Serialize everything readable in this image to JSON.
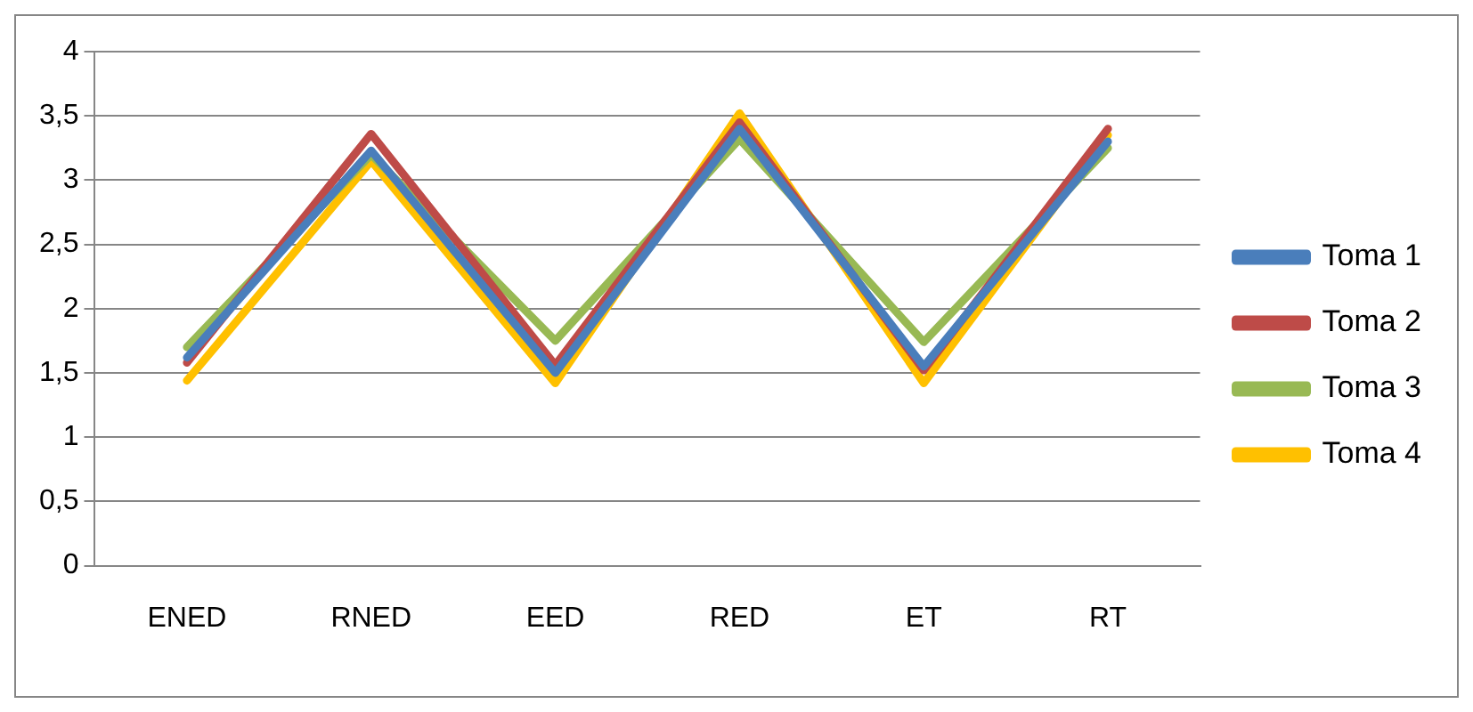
{
  "chart_data": {
    "type": "line",
    "categories": [
      "ENED",
      "RNED",
      "EED",
      "RED",
      "ET",
      "RT"
    ],
    "series": [
      {
        "name": "Toma 1",
        "color": "#4a7ebb",
        "values": [
          1.62,
          3.23,
          1.5,
          3.4,
          1.55,
          3.3
        ]
      },
      {
        "name": "Toma 2",
        "color": "#be4b48",
        "values": [
          1.58,
          3.36,
          1.56,
          3.45,
          1.52,
          3.4
        ]
      },
      {
        "name": "Toma 3",
        "color": "#98b954",
        "values": [
          1.7,
          3.2,
          1.75,
          3.32,
          1.74,
          3.25
        ]
      },
      {
        "name": "Toma 4",
        "color": "#ffc000",
        "values": [
          1.44,
          3.15,
          1.42,
          3.52,
          1.42,
          3.35
        ]
      }
    ],
    "ylim": [
      0,
      4
    ],
    "yticks": [
      0,
      {
        "value": 0.5,
        "label": "0,5"
      },
      1,
      {
        "value": 1.5,
        "label": "1,5"
      },
      2,
      {
        "value": 2.5,
        "label": "2,5"
      },
      3,
      {
        "value": 3.5,
        "label": "3,5"
      },
      4
    ],
    "grid": "y",
    "legend": "right",
    "marker": "none",
    "line_style": "solid"
  }
}
